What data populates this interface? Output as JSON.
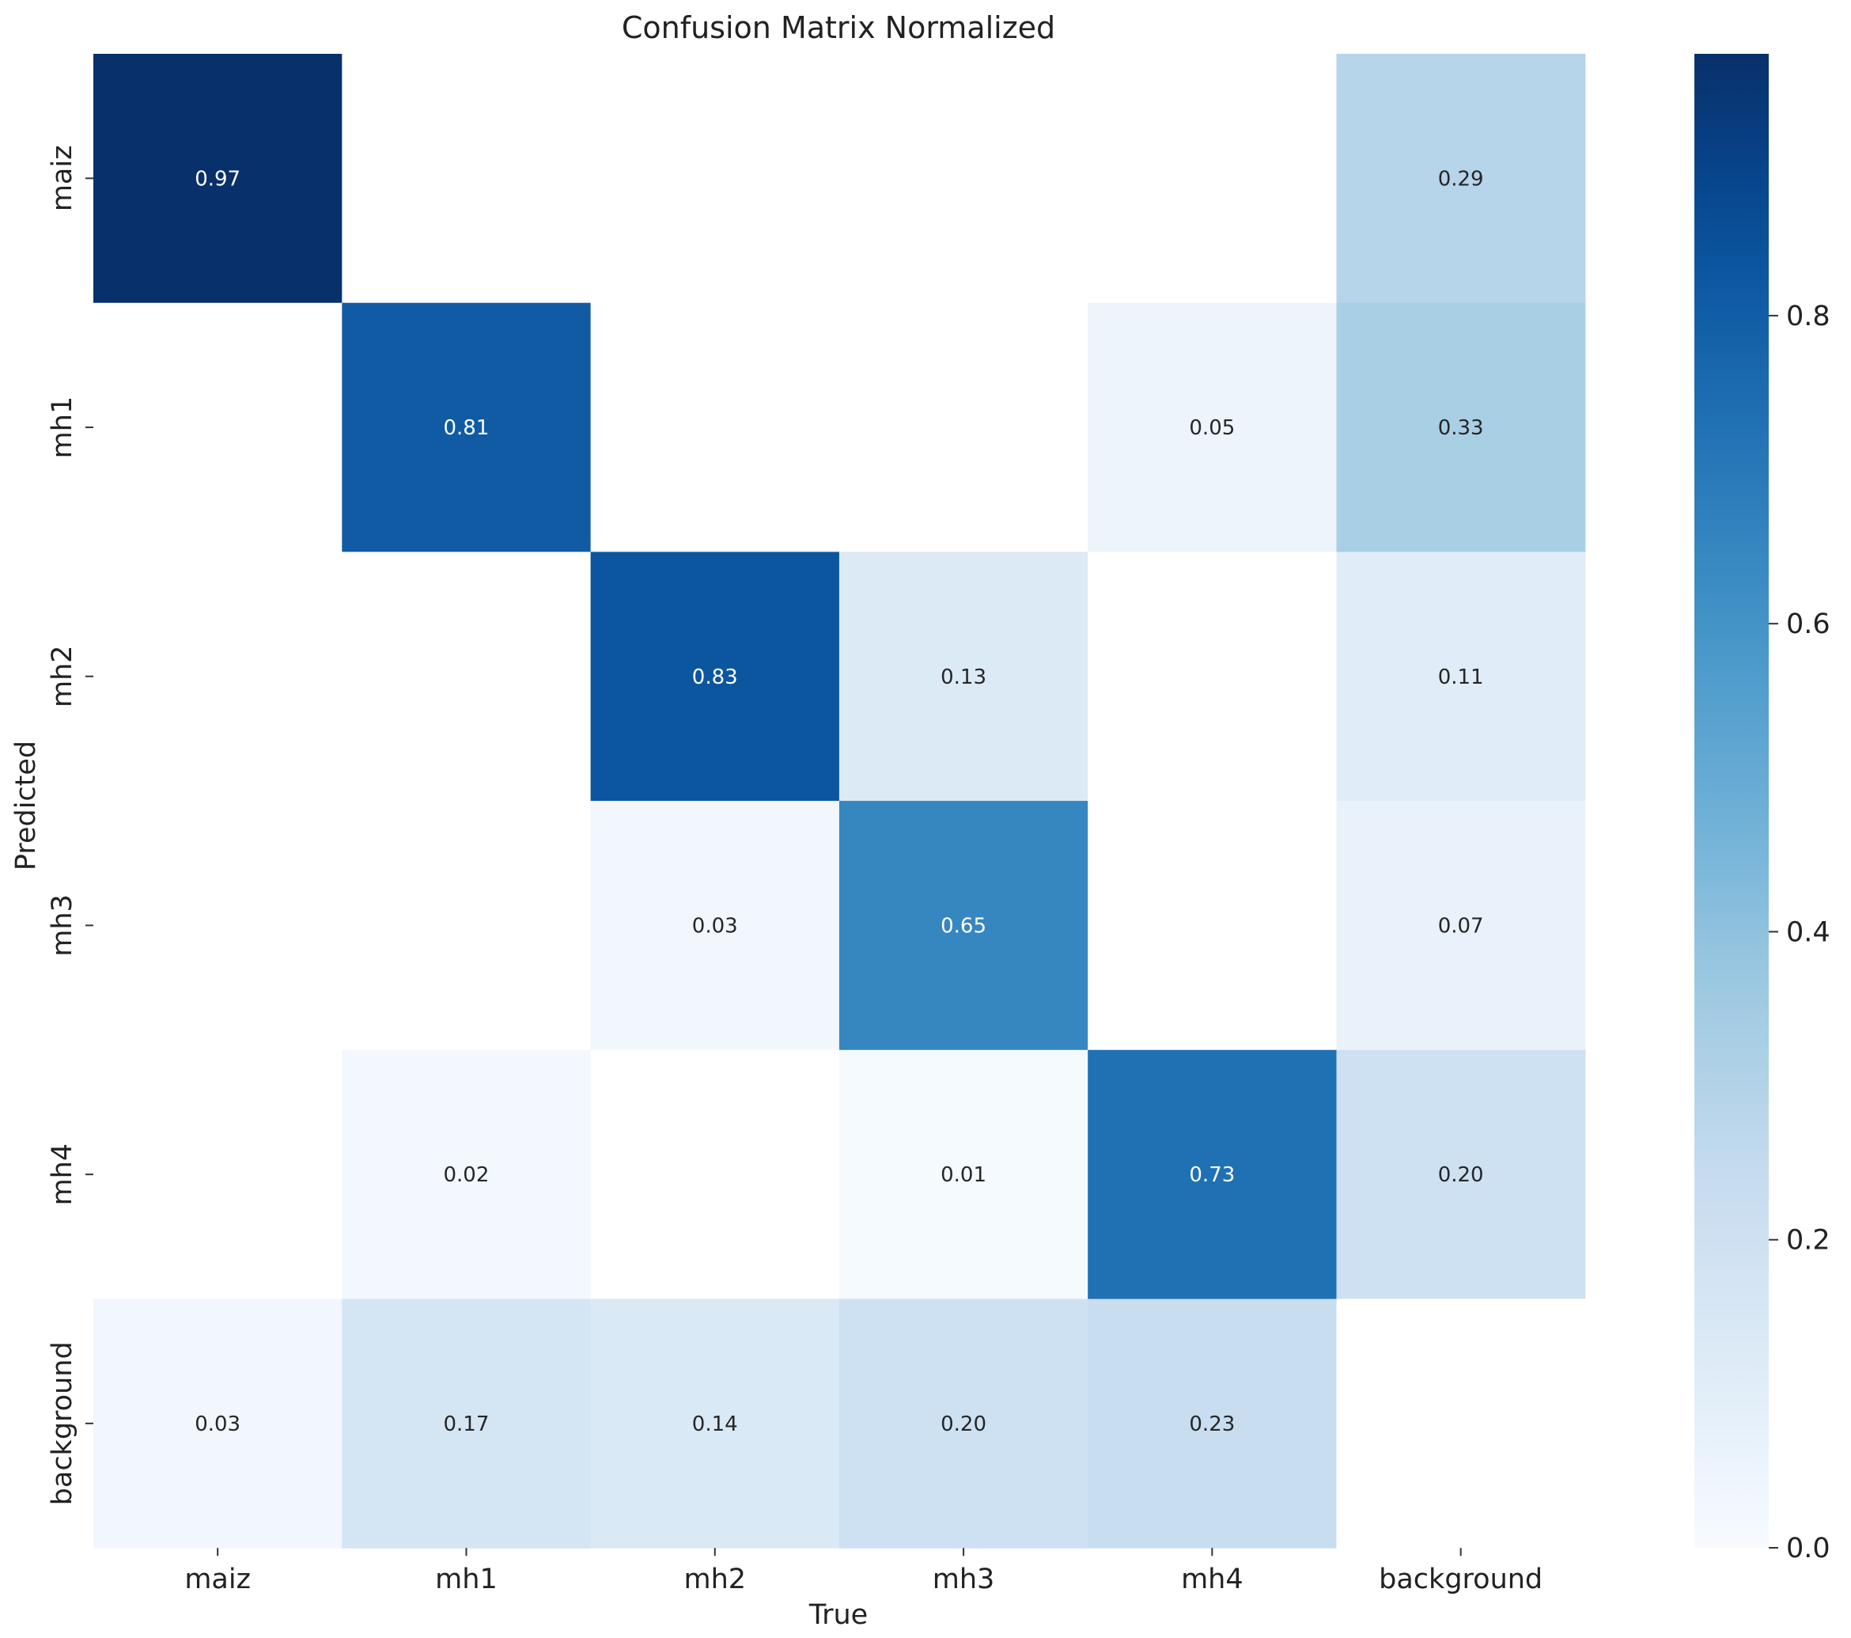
{
  "chart_data": {
    "type": "heatmap",
    "title": "Confusion Matrix Normalized",
    "xlabel": "True",
    "ylabel": "Predicted",
    "x_categories": [
      "maiz",
      "mh1",
      "mh2",
      "mh3",
      "mh4",
      "background"
    ],
    "y_categories": [
      "maiz",
      "mh1",
      "mh2",
      "mh3",
      "mh4",
      "background"
    ],
    "values": [
      [
        0.97,
        null,
        null,
        null,
        null,
        0.29
      ],
      [
        null,
        0.81,
        null,
        null,
        0.05,
        0.33
      ],
      [
        null,
        null,
        0.83,
        0.13,
        null,
        0.11
      ],
      [
        null,
        null,
        0.03,
        0.65,
        null,
        0.07
      ],
      [
        null,
        0.02,
        null,
        0.01,
        0.73,
        0.2
      ],
      [
        0.03,
        0.17,
        0.14,
        0.2,
        0.23,
        null
      ]
    ],
    "labels": [
      [
        "0.97",
        "",
        "",
        "",
        "",
        "0.29"
      ],
      [
        "",
        "0.81",
        "",
        "",
        "0.05",
        "0.33"
      ],
      [
        "",
        "",
        "0.83",
        "0.13",
        "",
        "0.11"
      ],
      [
        "",
        "",
        "0.03",
        "0.65",
        "",
        "0.07"
      ],
      [
        "",
        "0.02",
        "",
        "0.01",
        "0.73",
        "0.20"
      ],
      [
        "0.03",
        "0.17",
        "0.14",
        "0.20",
        "0.23",
        ""
      ]
    ],
    "colormap": "Blues",
    "vmin": 0.0,
    "vmax": 0.97,
    "colorbar_ticks": [
      0.0,
      0.2,
      0.4,
      0.6,
      0.8
    ],
    "colorbar_tick_labels": [
      "0.0",
      "0.2",
      "0.4",
      "0.6",
      "0.8"
    ],
    "colors": {
      "low": "#f7fbff",
      "high": "#08306b",
      "text_dark": "#262626",
      "text_light": "#ffffff",
      "empty_cell": "#ffffff"
    }
  }
}
